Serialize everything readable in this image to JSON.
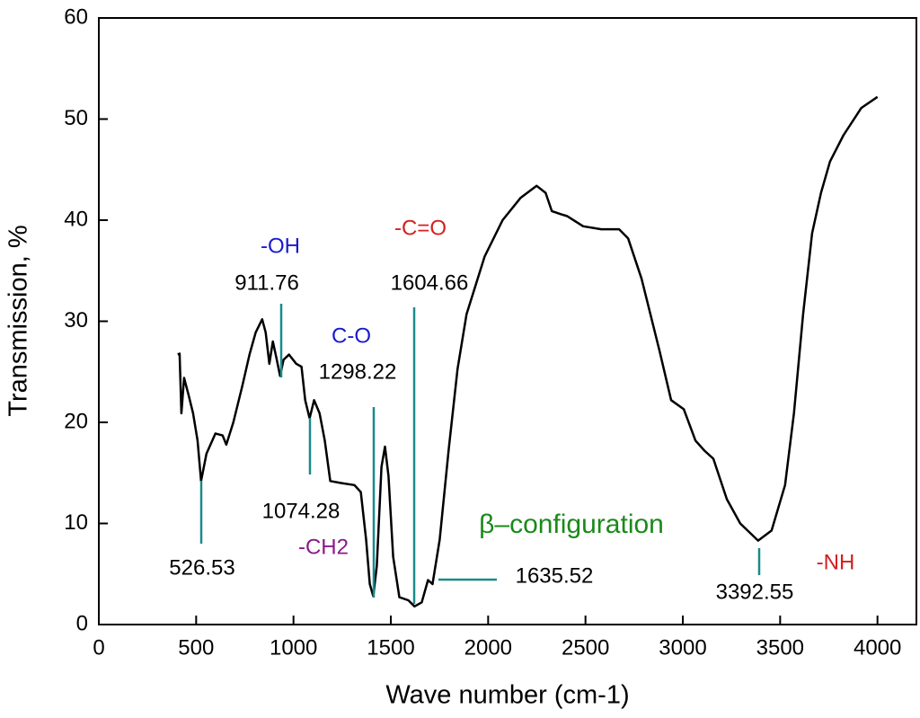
{
  "chart_data": {
    "type": "line",
    "xlabel": "Wave number (cm-1)",
    "ylabel": "Transmission, %",
    "xlim": [
      0,
      4200
    ],
    "ylim": [
      0,
      60
    ],
    "xticks": [
      0,
      500,
      1000,
      1500,
      2000,
      2500,
      3000,
      3500,
      4000
    ],
    "yticks": [
      0,
      10,
      20,
      30,
      40,
      50,
      60
    ],
    "series": [
      {
        "color": "#000000",
        "x": [
          405,
          415,
          424,
          438,
          461,
          484,
          507,
          525,
          553,
          599,
          636,
          655,
          691,
          737,
          774,
          806,
          839,
          857,
          876,
          894,
          912,
          931,
          949,
          977,
          1014,
          1041,
          1060,
          1083,
          1106,
          1134,
          1161,
          1189,
          1244,
          1313,
          1346,
          1373,
          1392,
          1410,
          1428,
          1452,
          1470,
          1488,
          1512,
          1544,
          1590,
          1622,
          1659,
          1691,
          1714,
          1751,
          1797,
          1843,
          1889,
          1982,
          2074,
          2166,
          2249,
          2295,
          2327,
          2373,
          2406,
          2488,
          2581,
          2673,
          2719,
          2788,
          2880,
          2940,
          3005,
          3065,
          3111,
          3157,
          3226,
          3295,
          3387,
          3456,
          3525,
          3571,
          3618,
          3664,
          3710,
          3756,
          3825,
          3917,
          4000
        ],
        "values": [
          26.7,
          26.8,
          20.9,
          24.4,
          22.7,
          20.9,
          18.2,
          14.2,
          16.9,
          18.9,
          18.7,
          17.8,
          20.0,
          23.6,
          26.7,
          28.9,
          30.2,
          28.9,
          25.8,
          28.0,
          26.4,
          24.6,
          26.2,
          26.7,
          25.8,
          25.5,
          22.2,
          20.4,
          22.2,
          20.9,
          18.2,
          14.2,
          14.0,
          13.8,
          13.1,
          8.4,
          4.0,
          2.8,
          5.8,
          15.6,
          17.6,
          14.7,
          6.7,
          2.7,
          2.4,
          1.8,
          2.2,
          4.4,
          4.0,
          8.4,
          17.3,
          25.3,
          30.7,
          36.4,
          40.0,
          42.2,
          43.4,
          42.7,
          40.9,
          40.6,
          40.4,
          39.4,
          39.1,
          39.1,
          38.2,
          34.2,
          27.1,
          22.2,
          21.3,
          18.2,
          17.2,
          16.4,
          12.4,
          10.0,
          8.3,
          9.3,
          13.8,
          20.9,
          30.7,
          38.7,
          42.7,
          45.8,
          48.4,
          51.1,
          52.2
        ]
      }
    ],
    "annotations": [
      {
        "text": "-OH",
        "color": "#1a1acc"
      },
      {
        "text": "911.76",
        "color": "#000000"
      },
      {
        "text": "C-O",
        "color": "#1a1acc"
      },
      {
        "text": "1298.22",
        "color": "#000000"
      },
      {
        "text": "-C=O",
        "color": "#d42020"
      },
      {
        "text": "1604.66",
        "color": "#000000"
      },
      {
        "text": "1074.28",
        "color": "#000000"
      },
      {
        "text": "526.53",
        "color": "#000000"
      },
      {
        "text": "-CH2",
        "color": "#8a1a8a"
      },
      {
        "text": "β–configuration",
        "color": "#1a8a1a"
      },
      {
        "text": "1635.52",
        "color": "#000000"
      },
      {
        "text": "3392.55",
        "color": "#000000"
      },
      {
        "text": "-NH",
        "color": "#d42020"
      }
    ]
  }
}
